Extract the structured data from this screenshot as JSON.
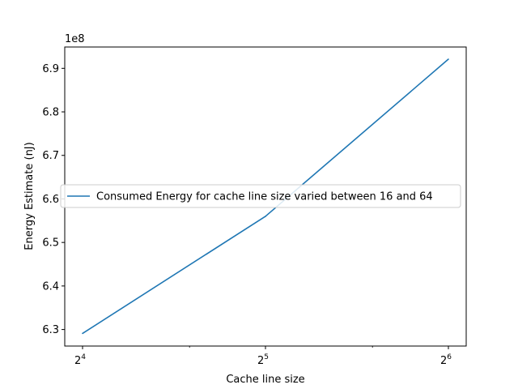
{
  "chart_data": {
    "type": "line",
    "title": "",
    "xlabel": "Cache line size",
    "ylabel": "Energy Estimate (nJ)",
    "x_scale": "log2",
    "x": [
      16,
      32,
      64
    ],
    "x_tick_labels": [
      {
        "base": "2",
        "exp": "4"
      },
      {
        "base": "2",
        "exp": "5"
      },
      {
        "base": "2",
        "exp": "6"
      }
    ],
    "y_offset_label": "1e8",
    "y_ticks": [
      "6.3",
      "6.4",
      "6.5",
      "6.6",
      "6.7",
      "6.8",
      "6.9"
    ],
    "y_tick_values": [
      6.3,
      6.4,
      6.5,
      6.6,
      6.7,
      6.8,
      6.9
    ],
    "ylim": [
      6.262,
      6.949
    ],
    "series": [
      {
        "name": "Consumed Energy for cache line size varied between 16 and 64",
        "color": "#1f77b4",
        "y": [
          6.291,
          6.56,
          6.921
        ]
      }
    ],
    "legend_position": "center-left",
    "grid": false
  }
}
